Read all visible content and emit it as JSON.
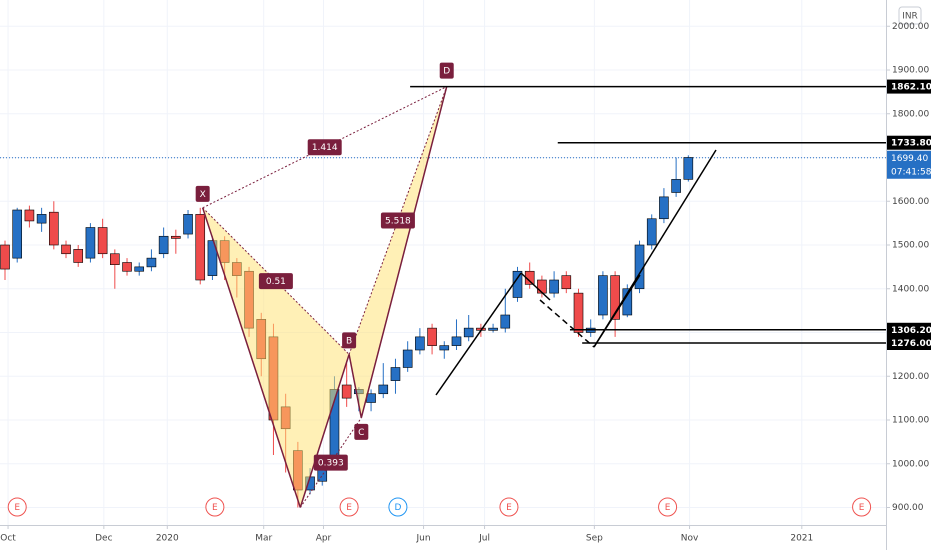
{
  "chart_data": {
    "type": "candlestick",
    "currency": "INR",
    "colors": {
      "up": "#2670c4",
      "down": "#ef4b4b"
    },
    "xlim": [
      -0.41,
      72.2
    ],
    "ylim": [
      860,
      2060
    ],
    "yticks": [
      {
        "value": 900,
        "label": "900.00"
      },
      {
        "value": 1000,
        "label": "1000.00"
      },
      {
        "value": 1100,
        "label": "1100.00"
      },
      {
        "value": 1200,
        "label": "1200.00"
      },
      {
        "value": 1300,
        "label": "1300.00"
      },
      {
        "value": 1400,
        "label": "1400.00"
      },
      {
        "value": 1500,
        "label": "1500.00"
      },
      {
        "value": 1600,
        "label": "1600.00"
      },
      {
        "value": 1700,
        "label": "1700.00"
      },
      {
        "value": 1800,
        "label": "1800.00"
      },
      {
        "value": 1900,
        "label": "1900.00"
      },
      {
        "value": 2000,
        "label": "2000.00"
      }
    ],
    "xticks": [
      {
        "value": 0.25,
        "label": "Oct"
      },
      {
        "value": 8.1,
        "label": "Dec"
      },
      {
        "value": 13.3,
        "label": "2020"
      },
      {
        "value": 21.2,
        "label": "Mar"
      },
      {
        "value": 26.1,
        "label": "Apr"
      },
      {
        "value": 34.3,
        "label": "Jun"
      },
      {
        "value": 39.3,
        "label": "Jul"
      },
      {
        "value": 48.3,
        "label": "Sep"
      },
      {
        "value": 56.1,
        "label": "Nov"
      },
      {
        "value": 65.3,
        "label": "2021"
      }
    ],
    "open": [
      1500,
      1470,
      1580,
      1550,
      1575,
      1500,
      1490,
      1470,
      1540,
      1480,
      1460,
      1440,
      1450,
      1480,
      1520,
      1525,
      1570,
      1430,
      1510,
      1460,
      1440,
      1330,
      1290,
      1130,
      1030,
      940,
      960,
      1000,
      1180,
      1160,
      1140,
      1160,
      1190,
      1220,
      1260,
      1310,
      1260,
      1270,
      1290,
      1310,
      1305,
      1310,
      1380,
      1440,
      1420,
      1390,
      1430,
      1390,
      1300,
      1340,
      1430,
      1340,
      1400,
      1500,
      1560,
      1620,
      1650
    ],
    "high": [
      1510,
      1585,
      1590,
      1585,
      1600,
      1510,
      1500,
      1550,
      1560,
      1490,
      1470,
      1460,
      1490,
      1540,
      1535,
      1580,
      1585,
      1520,
      1520,
      1470,
      1450,
      1345,
      1320,
      1160,
      1050,
      990,
      1020,
      1200,
      1230,
      1175,
      1170,
      1230,
      1240,
      1280,
      1310,
      1320,
      1280,
      1330,
      1340,
      1320,
      1320,
      1400,
      1450,
      1460,
      1430,
      1440,
      1440,
      1400,
      1330,
      1440,
      1440,
      1410,
      1510,
      1570,
      1630,
      1700,
      1705
    ],
    "low": [
      1420,
      1460,
      1540,
      1530,
      1490,
      1470,
      1450,
      1460,
      1470,
      1400,
      1430,
      1430,
      1440,
      1470,
      1480,
      1515,
      1410,
      1420,
      1420,
      1380,
      1290,
      1200,
      1020,
      980,
      900,
      930,
      950,
      990,
      1130,
      1120,
      1120,
      1150,
      1160,
      1210,
      1250,
      1250,
      1240,
      1260,
      1280,
      1290,
      1300,
      1300,
      1370,
      1400,
      1380,
      1380,
      1390,
      1290,
      1290,
      1330,
      1290,
      1335,
      1390,
      1490,
      1550,
      1610,
      1645
    ],
    "close": [
      1445,
      1580,
      1555,
      1570,
      1500,
      1480,
      1460,
      1540,
      1480,
      1455,
      1440,
      1450,
      1470,
      1520,
      1515,
      1570,
      1420,
      1510,
      1460,
      1430,
      1310,
      1240,
      1100,
      1080,
      940,
      970,
      1000,
      1170,
      1150,
      1170,
      1160,
      1180,
      1220,
      1260,
      1290,
      1270,
      1270,
      1290,
      1310,
      1305,
      1310,
      1340,
      1440,
      1410,
      1390,
      1420,
      1400,
      1300,
      1310,
      1430,
      1330,
      1400,
      1500,
      1560,
      1610,
      1650,
      1700
    ],
    "pattern": [
      {
        "label": "X",
        "x": 16.2,
        "y": 1585
      },
      {
        "x": 24.2,
        "y": 900
      },
      {
        "label": "B",
        "x": 28.2,
        "y": 1250
      },
      {
        "label": "C",
        "x": 29.2,
        "y": 1105
      },
      {
        "label": "D",
        "x": 36.2,
        "y": 1862
      }
    ],
    "ratios": [
      "1.414",
      "0.51",
      "0.393",
      "5.518"
    ],
    "levels": [
      {
        "value": 1862.1,
        "label": "1862.10",
        "start": 33.2
      },
      {
        "value": 1733.8,
        "label": "1733.80",
        "start": 45.3
      },
      {
        "value": 1306.2,
        "label": "1306.20",
        "start": 46.3
      },
      {
        "value": 1276,
        "label": "1276.00",
        "start": 47.3
      }
    ],
    "last_price": {
      "value": 1699.4,
      "label": "1699.40",
      "countdown": "07:41:58"
    },
    "events": [
      {
        "label": "E",
        "x": 1
      },
      {
        "label": "E",
        "x": 17.2
      },
      {
        "label": "E",
        "x": 28.2
      },
      {
        "label": "D",
        "x": 32.2
      },
      {
        "label": "E",
        "x": 41.3
      },
      {
        "label": "E",
        "x": 54.3
      },
      {
        "label": "E",
        "x": 70.2
      }
    ]
  }
}
